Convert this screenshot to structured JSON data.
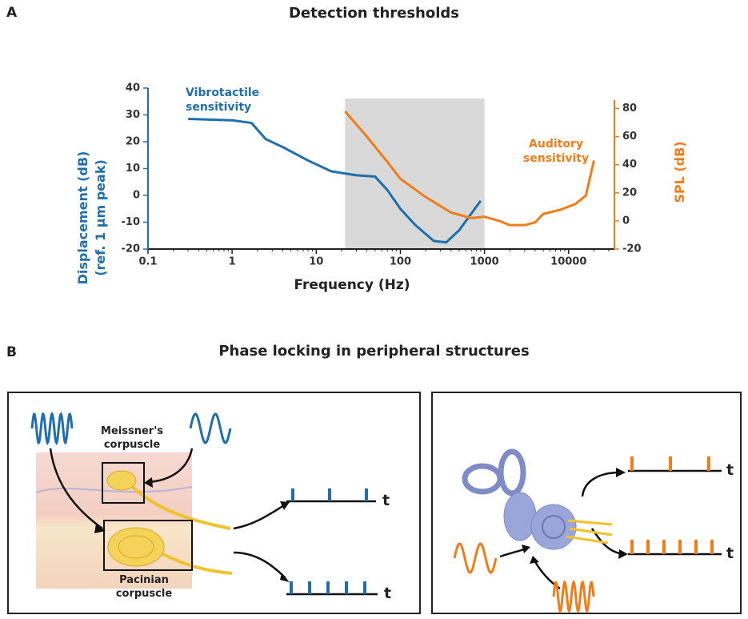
{
  "figure": {
    "panel_a_label": "A",
    "panel_b_label": "B",
    "panel_b": {
      "title": "Phase locking in peripheral structures",
      "meissner_label": "Meissner's corpuscle",
      "pacinian_label": "Pacinian corpuscle",
      "time_labels": [
        "t",
        "t",
        "t",
        "t"
      ]
    }
  },
  "chart_data": {
    "type": "line",
    "title": "Detection thresholds",
    "xlabel": "Frequency (Hz)",
    "ylabel": "Displacement (dB) (ref. 1 µm peak)",
    "y2label": "SPL (dB)",
    "xscale": "log",
    "xlim": [
      0.1,
      35000
    ],
    "xticks": [
      0.1,
      1,
      10,
      100,
      1000,
      10000
    ],
    "ylim": [
      -20,
      40
    ],
    "yticks": [
      40,
      30,
      20,
      10,
      0,
      -10,
      -20
    ],
    "y2lim": [
      -20,
      86
    ],
    "y2ticks": [
      80,
      60,
      40,
      20,
      0,
      -20
    ],
    "shaded_x": [
      22,
      1000
    ],
    "shade_color": "#d9d9d9",
    "series": [
      {
        "name": "Vibrotactile sensitivity",
        "color": "#1f6fad",
        "axis": "y",
        "x": [
          0.3,
          1,
          1.7,
          2.5,
          4,
          8,
          15,
          30,
          50,
          70,
          100,
          150,
          250,
          350,
          500,
          900
        ],
        "values": [
          28.5,
          28,
          27,
          21,
          18,
          13,
          9,
          7.5,
          7,
          2,
          -5,
          -11,
          -17,
          -17.5,
          -13,
          -2
        ]
      },
      {
        "name": "Auditory sensitivity",
        "color": "#f07d1a",
        "axis": "y2",
        "x": [
          22,
          40,
          70,
          100,
          200,
          400,
          700,
          1000,
          1500,
          2000,
          3000,
          4000,
          5000,
          8000,
          12000,
          16000,
          20000
        ],
        "values": [
          78,
          60,
          42,
          30,
          17,
          6,
          2,
          3,
          0,
          -3,
          -3,
          -1,
          5,
          8,
          12,
          18,
          43
        ]
      }
    ]
  }
}
